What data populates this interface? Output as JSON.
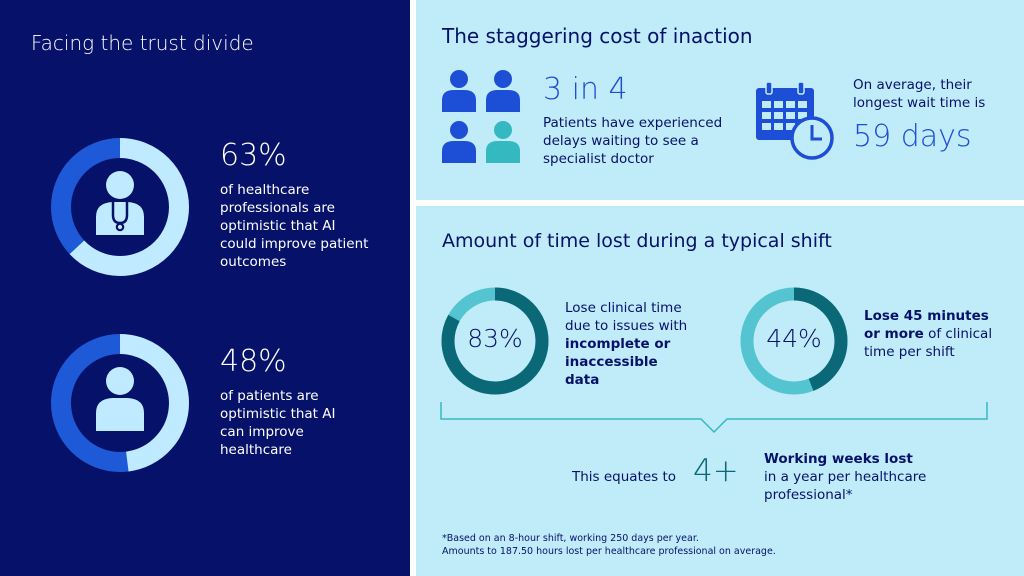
{
  "left": {
    "title": "Facing the trust divide",
    "stat1": {
      "value": "63%",
      "fraction": 0.63,
      "text": "of healthcare professionals are optimistic that AI could improve patient outcomes",
      "icon": "doctor-icon"
    },
    "stat2": {
      "value": "48%",
      "fraction": 0.48,
      "text": "of patients are optimistic that AI can improve healthcare",
      "icon": "patient-icon"
    }
  },
  "top_right": {
    "title": "The staggering cost of inaction",
    "stat1": {
      "value": "3 in 4",
      "text": "Patients have experienced delays waiting to see a specialist doctor",
      "icon": "people-icon",
      "highlighted_people": 3,
      "total_people": 4
    },
    "stat2": {
      "intro": "On average, their longest wait time is",
      "value": "59 days",
      "icon": "calendar-clock-icon"
    }
  },
  "bottom_right": {
    "title": "Amount of time lost during a typical shift",
    "stat1": {
      "value": "83%",
      "fraction": 0.83,
      "text_before": "Lose clinical time due to issues with ",
      "text_bold": "incomplete or inaccessible data"
    },
    "stat2": {
      "value": "44%",
      "fraction": 0.44,
      "text_bold": "Lose 45 minutes or more",
      "text_after": " of clinical time per shift"
    },
    "equates": {
      "label": "This equates to",
      "value": "4+",
      "text_bold": "Working weeks lost",
      "text_after": "in a year per healthcare professional*"
    },
    "footnote1": "*Based on an 8-hour shift, working 250 days per year.",
    "footnote2": "Amounts to 187.50 hours lost per healthcare professional on average."
  },
  "colors": {
    "navy": "#06126a",
    "light_blue": "#c0ebf8",
    "ring_light": "#bfeaff",
    "ring_blue": "#1e5ad8",
    "accent_blue": "#1d4fd6",
    "teal_dark": "#0b6877",
    "teal_light": "#53c4d0"
  }
}
